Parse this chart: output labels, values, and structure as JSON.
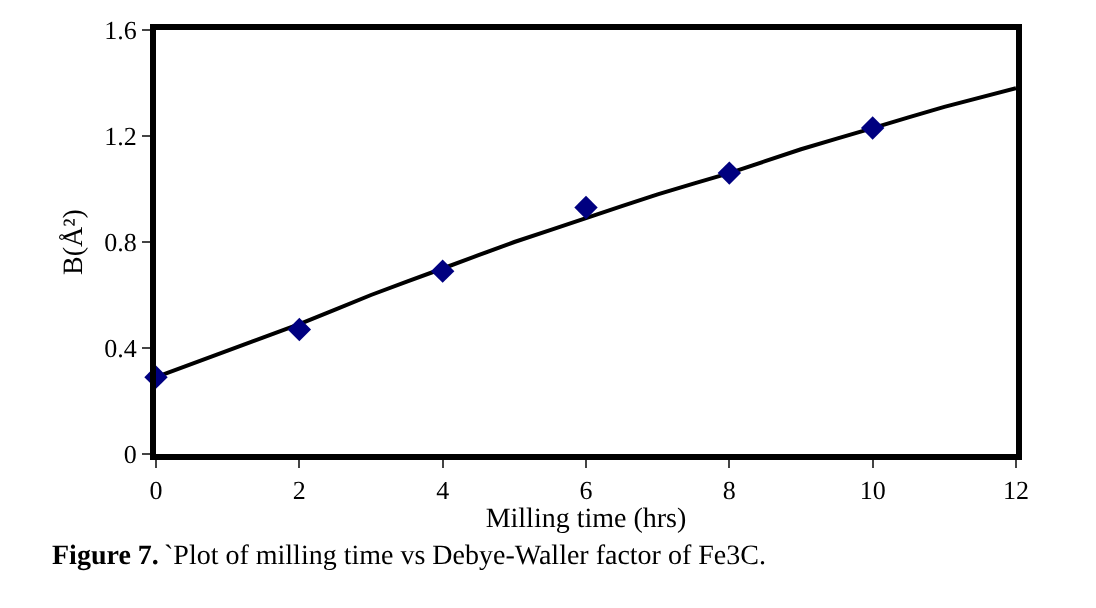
{
  "chart_data": {
    "type": "scatter",
    "xlabel": "Milling time (hrs)",
    "ylabel": "B(Å²)",
    "annotations": [
      "Figure 7.",
      "`Plot of milling time vs Debye-Waller factor of Fe3C."
    ],
    "x": [
      0,
      2,
      4,
      6,
      8,
      10
    ],
    "series": [
      {
        "color": "#000080",
        "marker": "diamond",
        "values": [
          0.29,
          0.47,
          0.69,
          0.93,
          1.06,
          1.23
        ]
      },
      {
        "type": "line",
        "color": "#000000",
        "marker": "none",
        "x": [
          0,
          1,
          2,
          3,
          4,
          5,
          6,
          7,
          8,
          9,
          10,
          11,
          12
        ],
        "values": [
          0.29,
          0.39,
          0.49,
          0.6,
          0.7,
          0.8,
          0.89,
          0.98,
          1.06,
          1.15,
          1.23,
          1.31,
          1.38
        ]
      }
    ],
    "xlim": [
      0,
      12
    ],
    "xticks": [
      0,
      2,
      4,
      6,
      8,
      10,
      12
    ],
    "ylim": [
      0,
      1.6
    ],
    "yticks": [
      0,
      0.4,
      0.8,
      1.2,
      1.6
    ],
    "grid": false
  }
}
